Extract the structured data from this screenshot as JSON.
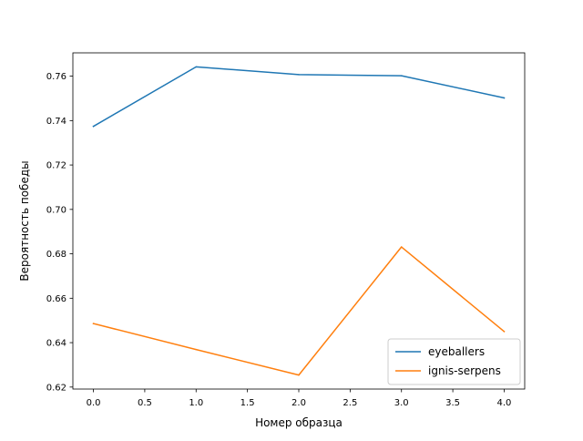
{
  "chart_data": {
    "type": "line",
    "title": "",
    "xlabel": "Номер образца",
    "ylabel": "Вероятность победы",
    "x": [
      0,
      1,
      2,
      3,
      4
    ],
    "xlim": [
      -0.2,
      4.2
    ],
    "ylim": [
      0.6191,
      0.7705
    ],
    "xticks": [
      0,
      0.5,
      1,
      1.5,
      2,
      2.5,
      3,
      3.5,
      4
    ],
    "xtick_labels": [
      "0.0",
      "0.5",
      "1.0",
      "1.5",
      "2.0",
      "2.5",
      "3.0",
      "3.5",
      "4.0"
    ],
    "yticks": [
      0.62,
      0.64,
      0.66,
      0.68,
      0.7,
      0.72,
      0.74,
      0.76
    ],
    "ytick_labels": [
      "0.62",
      "0.64",
      "0.66",
      "0.68",
      "0.70",
      "0.72",
      "0.74",
      "0.76"
    ],
    "grid": false,
    "legend": {
      "location": "lower-right"
    },
    "series": [
      {
        "name": "eyeballers",
        "color": "#1f77b4",
        "values": [
          0.7374,
          0.7642,
          0.7607,
          0.7602,
          0.7502
        ]
      },
      {
        "name": "ignis-serpens",
        "color": "#ff7f0e",
        "values": [
          0.6486,
          0.6369,
          0.6254,
          0.6831,
          0.645
        ]
      }
    ]
  }
}
